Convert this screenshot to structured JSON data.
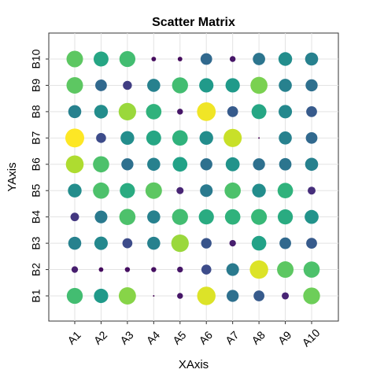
{
  "chart_data": {
    "type": "bubble-matrix",
    "title": "Scatter Matrix",
    "x_label": "XAxis",
    "y_label": "YAxis",
    "x_categories": [
      "A1",
      "A2",
      "A3",
      "A4",
      "A5",
      "A6",
      "A7",
      "A8",
      "A9",
      "A10"
    ],
    "y_categories": [
      "B1",
      "B2",
      "B3",
      "B4",
      "B5",
      "B6",
      "B7",
      "B8",
      "B9",
      "B10"
    ],
    "values": [
      [
        70,
        55,
        82,
        2,
        8,
        95,
        38,
        30,
        12,
        78
      ],
      [
        10,
        5,
        6,
        6,
        8,
        25,
        42,
        95,
        75,
        72
      ],
      [
        45,
        48,
        25,
        45,
        85,
        28,
        10,
        58,
        35,
        30
      ],
      [
        18,
        42,
        72,
        45,
        70,
        62,
        65,
        68,
        62,
        52
      ],
      [
        50,
        72,
        62,
        75,
        12,
        42,
        72,
        50,
        65,
        15
      ],
      [
        88,
        72,
        38,
        45,
        58,
        38,
        52,
        38,
        40,
        45
      ],
      [
        100,
        25,
        50,
        60,
        65,
        50,
        92,
        2,
        45,
        35
      ],
      [
        45,
        50,
        85,
        65,
        8,
        98,
        30,
        60,
        48,
        30
      ],
      [
        75,
        35,
        20,
        45,
        70,
        55,
        55,
        80,
        45,
        38
      ],
      [
        75,
        60,
        70,
        5,
        5,
        35,
        8,
        40,
        50,
        45
      ]
    ],
    "colormap": [
      "#440154",
      "#482878",
      "#3e4989",
      "#31688e",
      "#26828e",
      "#1f9e89",
      "#35b779",
      "#6ece58",
      "#b5de2b",
      "#fde725"
    ],
    "grid": true
  }
}
